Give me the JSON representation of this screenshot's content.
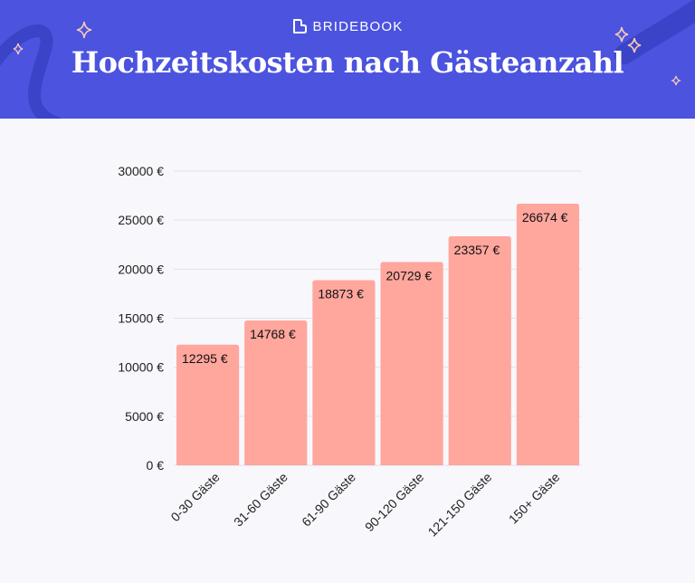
{
  "brand": {
    "name": "BRIDEBOOK"
  },
  "title": "Hochzeitskosten nach Gästeanzahl",
  "colors": {
    "header": "#4b53df",
    "bar": "#ffa69d",
    "accent": "#3b43c9",
    "sparkle": "#f6c9b6"
  },
  "chart_data": {
    "type": "bar",
    "title": "Hochzeitskosten nach Gästeanzahl",
    "xlabel": "",
    "ylabel": "",
    "categories": [
      "0-30 Gäste",
      "31-60 Gäste",
      "61-90 Gäste",
      "90-120 Gäste",
      "121-150 Gäste",
      "150+ Gäste"
    ],
    "values": [
      12295,
      14768,
      18873,
      20729,
      23357,
      26674
    ],
    "value_labels": [
      "12295 €",
      "14768 €",
      "18873 €",
      "20729 €",
      "23357 €",
      "26674 €"
    ],
    "yticks": [
      0,
      5000,
      10000,
      15000,
      20000,
      25000,
      30000
    ],
    "ytick_labels": [
      "0 €",
      "5000 €",
      "10000 €",
      "15000 €",
      "20000 €",
      "25000 €",
      "30000 €"
    ],
    "ylim": [
      0,
      30000
    ],
    "grid": true,
    "legend": "none"
  }
}
